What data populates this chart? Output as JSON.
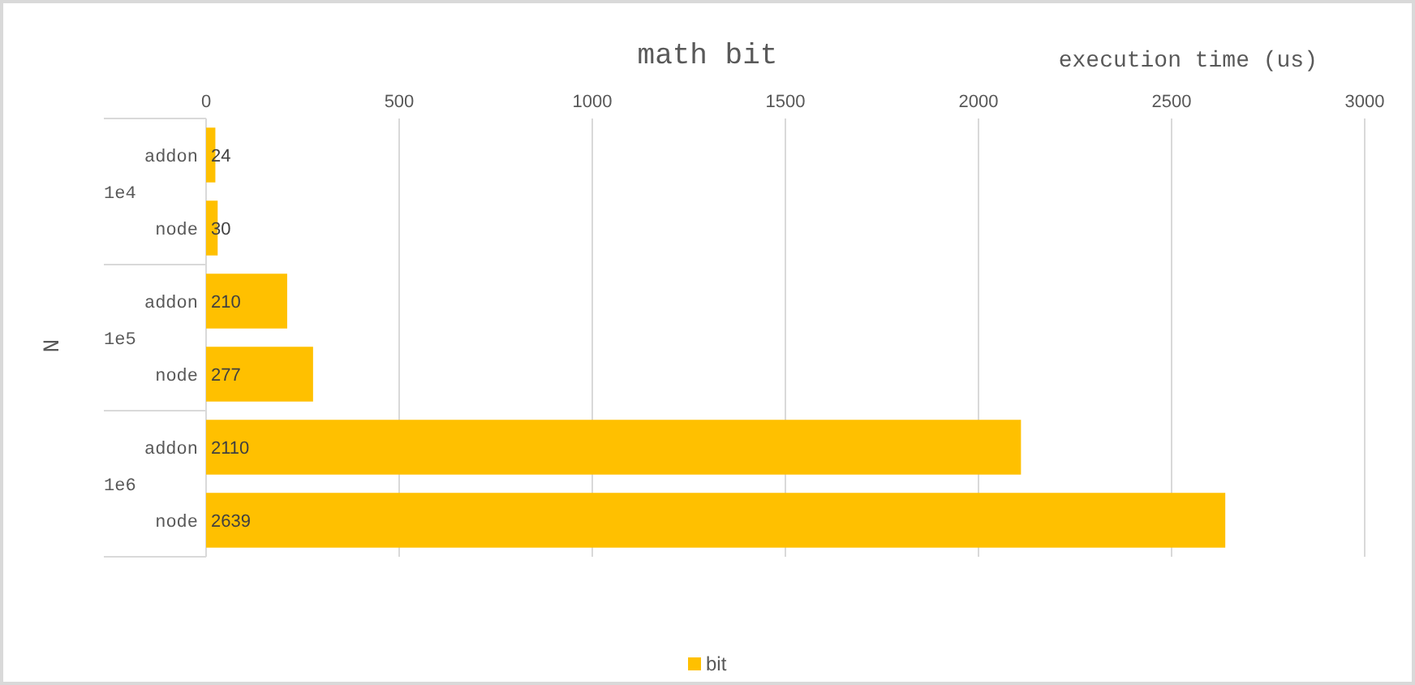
{
  "chart_data": {
    "type": "bar",
    "orientation": "horizontal",
    "title": "math bit",
    "xlabel": "execution time (us)",
    "ylabel": "N",
    "categories": [
      "addon",
      "node",
      "addon",
      "node",
      "addon",
      "node"
    ],
    "annotations": [
      "1e4",
      "1e5",
      "1e6"
    ],
    "series": [
      {
        "name": "bit",
        "color": "#ffc000",
        "values": [
          24,
          30,
          210,
          277,
          2110,
          2639
        ]
      }
    ],
    "xlim": [
      0,
      3000
    ],
    "xticks": [
      0,
      500,
      1000,
      1500,
      2000,
      2500,
      3000
    ],
    "grid": "x",
    "data_labels": true,
    "legend": "bottom"
  }
}
